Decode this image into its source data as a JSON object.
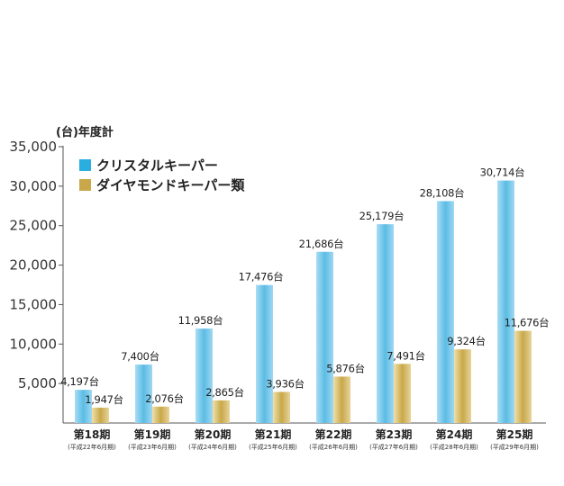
{
  "chart_data": {
    "type": "bar",
    "unit_label": "(台)年度計",
    "categories": [
      "第18期",
      "第19期",
      "第20期",
      "第21期",
      "第22期",
      "第23期",
      "第24期",
      "第25期"
    ],
    "category_sublabels": [
      "(平成22年6月期)",
      "(平成23年6月期)",
      "(平成24年6月期)",
      "(平成25年6月期)",
      "(平成26年6月期)",
      "(平成27年6月期)",
      "(平成28年6月期)",
      "(平成29年6月期)"
    ],
    "series": [
      {
        "name": "クリスタルキーパー",
        "values": [
          4197,
          7400,
          11958,
          17476,
          21686,
          25179,
          28108,
          30714
        ],
        "labels": [
          "4,197台",
          "7,400台",
          "11,958台",
          "17,476台",
          "21,686台",
          "25,179台",
          "28,108台",
          "30,714台"
        ],
        "color": "#5bbce4"
      },
      {
        "name": "ダイヤモンドキーパー類",
        "values": [
          1947,
          2076,
          2865,
          3936,
          5876,
          7491,
          9324,
          11676
        ],
        "labels": [
          "1,947台",
          "2,076台",
          "2,865台",
          "3,936台",
          "5,876台",
          "7,491台",
          "9,324台",
          "11,676台"
        ],
        "color": "#c8a84a"
      }
    ],
    "yticks": [
      "5,000",
      "10,000",
      "15,000",
      "20,000",
      "25,000",
      "30,000",
      "35,000"
    ],
    "ytick_values": [
      5000,
      10000,
      15000,
      20000,
      25000,
      30000,
      35000
    ],
    "ylim": [
      0,
      35000
    ],
    "legend_position": "top-left",
    "grid": false
  }
}
